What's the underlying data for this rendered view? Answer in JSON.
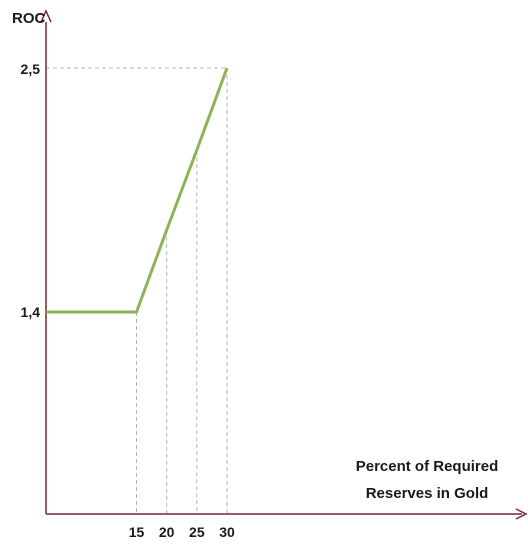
{
  "chart_data": {
    "type": "line",
    "ylabel": "ROC",
    "xlabel_lines": [
      "Percent of Required",
      "Reserves in Gold"
    ],
    "x_ticks": [
      15,
      20,
      25,
      30
    ],
    "y_ticks": [
      "1,4",
      "2,5"
    ],
    "series": [
      {
        "x": [
          0,
          15,
          20,
          25,
          30
        ],
        "y": [
          1.4,
          1.4,
          1.77,
          2.13,
          2.5
        ]
      }
    ],
    "guide_points": [
      {
        "x": 15,
        "y": 1.4
      },
      {
        "x": 20,
        "y": 1.77
      },
      {
        "x": 25,
        "y": 2.13
      },
      {
        "x": 30,
        "y": 2.5
      }
    ],
    "ylim": [
      0,
      2.85
    ],
    "xlim": [
      0,
      50
    ],
    "colors": {
      "line": "#8cb457",
      "axis": "#7a2631",
      "guide": "#b4b4b4"
    },
    "grid": false
  }
}
